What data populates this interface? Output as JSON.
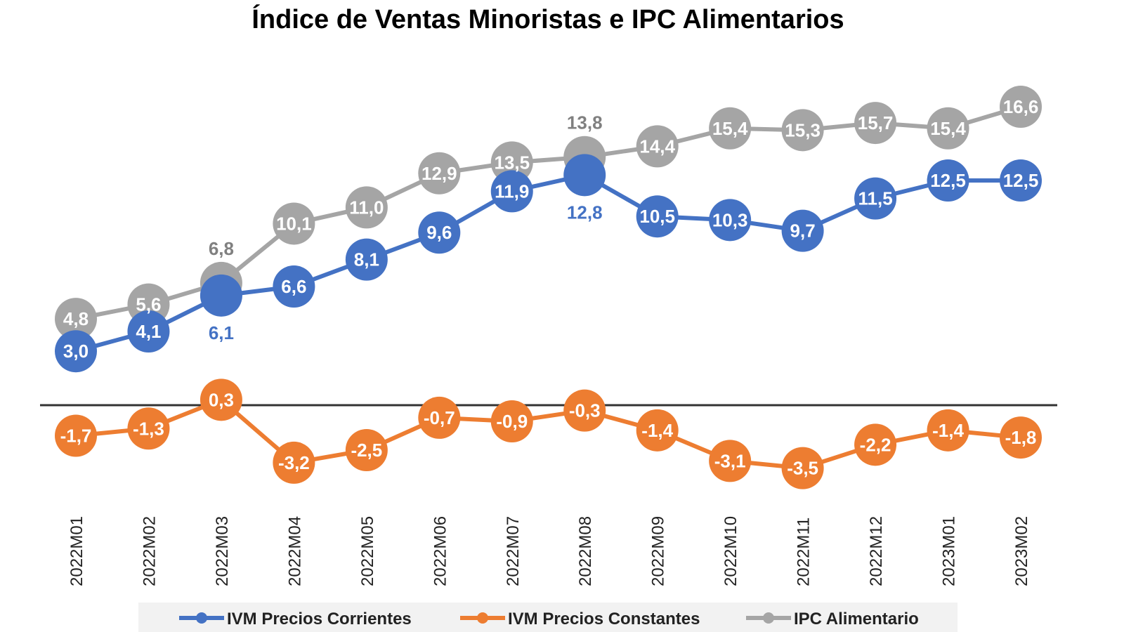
{
  "chart_data": {
    "type": "line",
    "title": "Índice de Ventas Minoristas e IPC Alimentarios",
    "xlabel": "",
    "ylabel": "",
    "categories": [
      "2022M01",
      "2022M02",
      "2022M03",
      "2022M04",
      "2022M05",
      "2022M06",
      "2022M07",
      "2022M08",
      "2022M09",
      "2022M10",
      "2022M11",
      "2022M12",
      "2023M01",
      "2023M02"
    ],
    "series": [
      {
        "name": "IVM Precios Corrientes",
        "color": "#4472C4",
        "values": [
          3.0,
          4.1,
          6.1,
          6.6,
          8.1,
          9.6,
          11.9,
          12.8,
          10.5,
          10.3,
          9.7,
          11.5,
          12.5,
          12.5
        ]
      },
      {
        "name": "IVM Precios Constantes",
        "color": "#ED7D31",
        "values": [
          -1.7,
          -1.3,
          0.3,
          -3.2,
          -2.5,
          -0.7,
          -0.9,
          -0.3,
          -1.4,
          -3.1,
          -3.5,
          -2.2,
          -1.4,
          -1.8
        ]
      },
      {
        "name": "IPC Alimentario",
        "color": "#A5A5A5",
        "values": [
          4.8,
          5.6,
          6.8,
          10.1,
          11.0,
          12.9,
          13.5,
          13.8,
          14.4,
          15.4,
          15.3,
          15.7,
          15.4,
          16.6
        ]
      }
    ],
    "ylim": [
      -5,
      22
    ],
    "grid": false,
    "data_labels": true,
    "decimal_separator": ",",
    "legend_position": "bottom"
  }
}
